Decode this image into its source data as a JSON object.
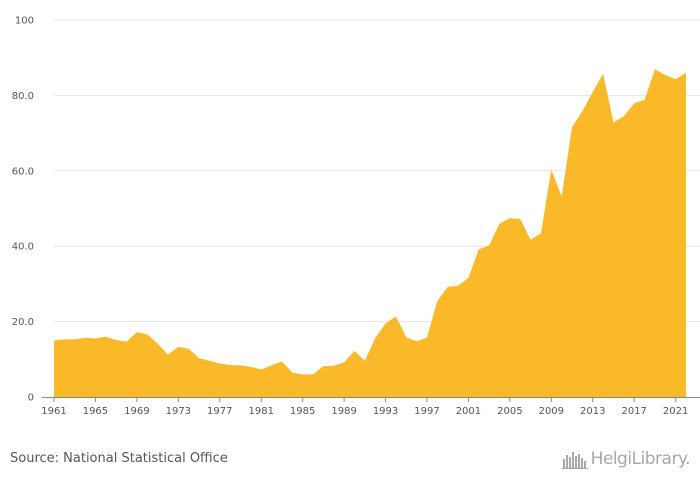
{
  "chart_data": {
    "type": "area",
    "title": "",
    "xlabel": "",
    "ylabel": "",
    "ylim": [
      0,
      100
    ],
    "xlim": [
      1961,
      2022
    ],
    "y_ticks": [
      "0",
      "20.0",
      "40.0",
      "60.0",
      "80.0",
      "100"
    ],
    "x_ticks": [
      "1961",
      "1965",
      "1969",
      "1973",
      "1977",
      "1981",
      "1985",
      "1989",
      "1993",
      "1997",
      "2001",
      "2005",
      "2009",
      "2013",
      "2017",
      "2021"
    ],
    "grid": "horizontal",
    "legend": "none",
    "fill_color": "#f9b928",
    "series": [
      {
        "x": [
          1961,
          1962,
          1963,
          1964,
          1965,
          1966,
          1967,
          1968,
          1969,
          1970,
          1971,
          1972,
          1973,
          1974,
          1975,
          1976,
          1977,
          1978,
          1979,
          1980,
          1981,
          1982,
          1983,
          1984,
          1985,
          1986,
          1987,
          1988,
          1989,
          1990,
          1991,
          1992,
          1993,
          1994,
          1995,
          1996,
          1997,
          1998,
          1999,
          2000,
          2001,
          2002,
          2003,
          2004,
          2005,
          2006,
          2007,
          2008,
          2009,
          2010,
          2011,
          2012,
          2013,
          2014,
          2015,
          2016,
          2017,
          2018,
          2019,
          2020,
          2021,
          2022
        ],
        "values": [
          15.0,
          15.3,
          15.3,
          15.7,
          15.5,
          16.0,
          15.1,
          14.7,
          17.2,
          16.6,
          14.2,
          11.2,
          13.3,
          12.8,
          10.3,
          9.6,
          8.9,
          8.5,
          8.4,
          8.0,
          7.3,
          8.4,
          9.4,
          6.5,
          6.0,
          6.0,
          8.2,
          8.3,
          9.2,
          12.2,
          9.6,
          15.6,
          19.5,
          21.4,
          15.8,
          14.8,
          15.7,
          25.5,
          29.2,
          29.5,
          31.6,
          39.2,
          40.2,
          46.0,
          47.4,
          47.2,
          41.7,
          43.4,
          60.3,
          53.2,
          71.6,
          75.8,
          80.9,
          85.7,
          72.8,
          74.5,
          77.9,
          78.8,
          86.9,
          85.4,
          84.3,
          86.0
        ]
      }
    ]
  },
  "footer": {
    "source": "Source: National Statistical Office",
    "logo_text": "HelgiLibrary."
  },
  "colors": {
    "area": "#f9b928",
    "grid": "#e6e6e6",
    "axis": "#888888",
    "text": "#555555"
  },
  "icons": {
    "logo": "bar-skyline-icon"
  }
}
